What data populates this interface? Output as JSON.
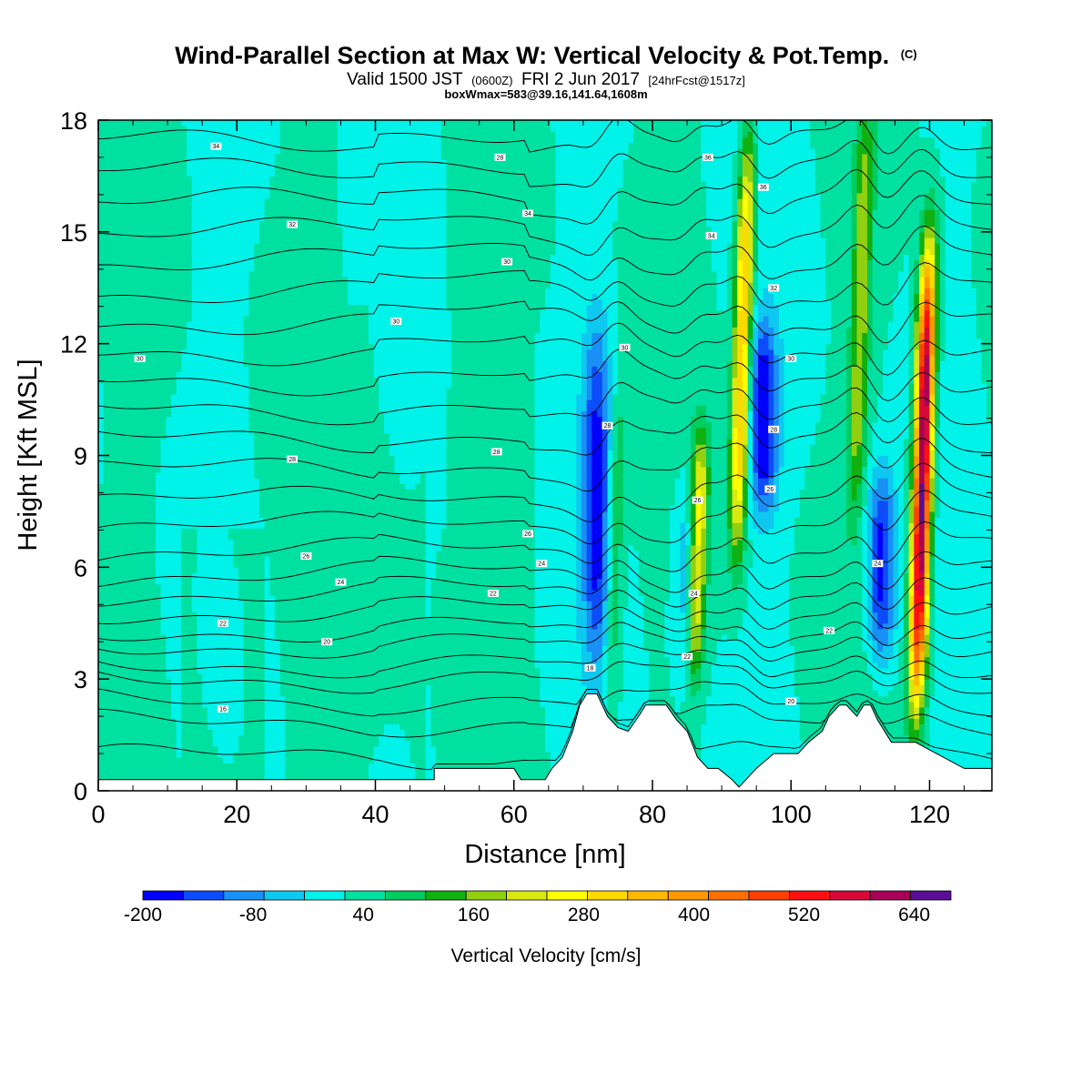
{
  "title": {
    "main": "Wind-Parallel Section at Max W: Vertical Velocity & Pot.Temp.",
    "tag": "(C)",
    "valid_main": "Valid 1500 JST",
    "valid_utc": "(0600Z)",
    "valid_date": "FRI 2 Jun 2017",
    "forecast": "[24hrFcst@1517z]",
    "box_info": "boxWmax=583@39.16,141.64,1608m"
  },
  "chart_data": {
    "type": "heatmap",
    "xlabel": "Distance [nm]",
    "ylabel": "Height [Kft MSL]",
    "xlim": [
      0,
      129
    ],
    "ylim": [
      0,
      18
    ],
    "x_ticks": [
      0,
      20,
      40,
      60,
      80,
      100,
      120
    ],
    "y_ticks": [
      0,
      3,
      6,
      9,
      12,
      15,
      18
    ],
    "x_tick_labels": [
      "0",
      "20",
      "40",
      "60",
      "80",
      "100",
      "120"
    ],
    "y_tick_labels": [
      "0",
      "3",
      "6",
      "9",
      "12",
      "15",
      "18"
    ],
    "colorbar": {
      "title": "Vertical Velocity [cm/s]",
      "min": -200,
      "max": 680,
      "step": 40,
      "labels": [
        "-200",
        "-80",
        "40",
        "160",
        "280",
        "400",
        "520",
        "640"
      ],
      "label_values": [
        -200,
        -80,
        40,
        160,
        280,
        400,
        520,
        640
      ],
      "colors": [
        "#0000ff",
        "#0d4cfa",
        "#1890f5",
        "#0ec8f0",
        "#00f2e8",
        "#00e0a0",
        "#00cc60",
        "#10b010",
        "#90d010",
        "#d8e810",
        "#ffff00",
        "#ffd800",
        "#ffb800",
        "#ff9800",
        "#ff7000",
        "#ff4000",
        "#ff1010",
        "#d80838",
        "#a80058",
        "#5a0e96"
      ]
    },
    "background_level": 0,
    "updraft_cores": [
      {
        "x": 93.0,
        "base_kft": 7.0,
        "top_kft": 17.0,
        "max_cm_s": 300
      },
      {
        "x": 119.0,
        "base_kft": 3.0,
        "top_kft": 14.0,
        "max_cm_s": 583
      },
      {
        "x": 86.5,
        "base_kft": 3.5,
        "top_kft": 9.0,
        "max_cm_s": 230
      },
      {
        "x": 110.0,
        "base_kft": 8.0,
        "top_kft": 17.5,
        "max_cm_s": 150
      },
      {
        "x": 74.5,
        "base_kft": 2.5,
        "top_kft": 10.0,
        "max_cm_s": 90
      }
    ],
    "downdraft_cores": [
      {
        "x": 72.0,
        "base_kft": 4.0,
        "top_kft": 12.0,
        "min_cm_s": -170
      },
      {
        "x": 96.0,
        "base_kft": 8.0,
        "top_kft": 12.0,
        "min_cm_s": -200
      },
      {
        "x": 113.0,
        "base_kft": 4.0,
        "top_kft": 8.0,
        "min_cm_s": -180
      },
      {
        "x": 85.0,
        "base_kft": 3.5,
        "top_kft": 8.0,
        "min_cm_s": -90
      }
    ],
    "terrain": [
      [
        0,
        0.3
      ],
      [
        48.5,
        0.3
      ],
      [
        48.5,
        0.6
      ],
      [
        60,
        0.6
      ],
      [
        61,
        0.3
      ],
      [
        64.5,
        0.3
      ],
      [
        65.5,
        0.6
      ],
      [
        67,
        0.9
      ],
      [
        68.5,
        1.6
      ],
      [
        69.5,
        2.3
      ],
      [
        70.5,
        2.6
      ],
      [
        72,
        2.6
      ],
      [
        73.5,
        2.0
      ],
      [
        75,
        1.7
      ],
      [
        76.5,
        1.6
      ],
      [
        78,
        2.0
      ],
      [
        79,
        2.3
      ],
      [
        82,
        2.3
      ],
      [
        83.5,
        1.9
      ],
      [
        85,
        1.6
      ],
      [
        86.5,
        0.9
      ],
      [
        88,
        0.6
      ],
      [
        89.5,
        0.6
      ],
      [
        91.5,
        0.3
      ],
      [
        92.5,
        0.1
      ],
      [
        93.5,
        0.3
      ],
      [
        95,
        0.6
      ],
      [
        97.5,
        1.0
      ],
      [
        101,
        1.0
      ],
      [
        102.5,
        1.3
      ],
      [
        104.5,
        1.6
      ],
      [
        105.5,
        2.0
      ],
      [
        107,
        2.3
      ],
      [
        108,
        2.3
      ],
      [
        109.5,
        2.0
      ],
      [
        110.5,
        2.3
      ],
      [
        111.5,
        2.3
      ],
      [
        112.5,
        1.9
      ],
      [
        114.5,
        1.3
      ],
      [
        118,
        1.3
      ],
      [
        121,
        1.0
      ],
      [
        125,
        0.6
      ],
      [
        129,
        0.6
      ]
    ],
    "isentrope_heights": [
      0.9,
      1.8,
      2.4,
      3.0,
      3.4,
      3.9,
      4.3,
      4.8,
      5.3,
      5.8,
      6.4,
      7.1,
      7.8,
      8.6,
      9.4,
      10.2,
      11.0,
      11.8,
      12.6,
      13.4,
      14.2,
      15.0,
      15.8,
      16.6,
      17.4
    ],
    "isentrope_labels": [
      {
        "x": 18.0,
        "y": 2.2,
        "text": "16"
      },
      {
        "x": 33.0,
        "y": 4.0,
        "text": "20"
      },
      {
        "x": 18.0,
        "y": 4.5,
        "text": "22"
      },
      {
        "x": 35.0,
        "y": 5.6,
        "text": "24"
      },
      {
        "x": 30.0,
        "y": 6.3,
        "text": "26"
      },
      {
        "x": 28.0,
        "y": 8.9,
        "text": "28"
      },
      {
        "x": 6.0,
        "y": 11.6,
        "text": "30"
      },
      {
        "x": 43.0,
        "y": 12.6,
        "text": "30"
      },
      {
        "x": 28.0,
        "y": 15.2,
        "text": "32"
      },
      {
        "x": 17.0,
        "y": 17.3,
        "text": "34"
      },
      {
        "x": 58.0,
        "y": 17.0,
        "text": "28"
      },
      {
        "x": 62.0,
        "y": 15.5,
        "text": "34"
      },
      {
        "x": 59.0,
        "y": 14.2,
        "text": "30"
      },
      {
        "x": 57.5,
        "y": 9.1,
        "text": "28"
      },
      {
        "x": 62.0,
        "y": 6.9,
        "text": "26"
      },
      {
        "x": 64.0,
        "y": 6.1,
        "text": "24"
      },
      {
        "x": 57.0,
        "y": 5.3,
        "text": "22"
      },
      {
        "x": 71.0,
        "y": 3.3,
        "text": "18"
      },
      {
        "x": 76.0,
        "y": 11.9,
        "text": "30"
      },
      {
        "x": 73.5,
        "y": 9.8,
        "text": "28"
      },
      {
        "x": 86.5,
        "y": 7.8,
        "text": "26"
      },
      {
        "x": 86.0,
        "y": 5.3,
        "text": "24"
      },
      {
        "x": 85.0,
        "y": 3.6,
        "text": "22"
      },
      {
        "x": 88.0,
        "y": 17.0,
        "text": "36"
      },
      {
        "x": 96.0,
        "y": 16.2,
        "text": "36"
      },
      {
        "x": 88.5,
        "y": 14.9,
        "text": "34"
      },
      {
        "x": 97.5,
        "y": 13.5,
        "text": "32"
      },
      {
        "x": 100.0,
        "y": 11.6,
        "text": "30"
      },
      {
        "x": 97.5,
        "y": 9.7,
        "text": "28"
      },
      {
        "x": 97.0,
        "y": 8.1,
        "text": "26"
      },
      {
        "x": 112.5,
        "y": 6.1,
        "text": "24"
      },
      {
        "x": 105.5,
        "y": 4.3,
        "text": "22"
      },
      {
        "x": 100.0,
        "y": 2.4,
        "text": "20"
      }
    ]
  }
}
